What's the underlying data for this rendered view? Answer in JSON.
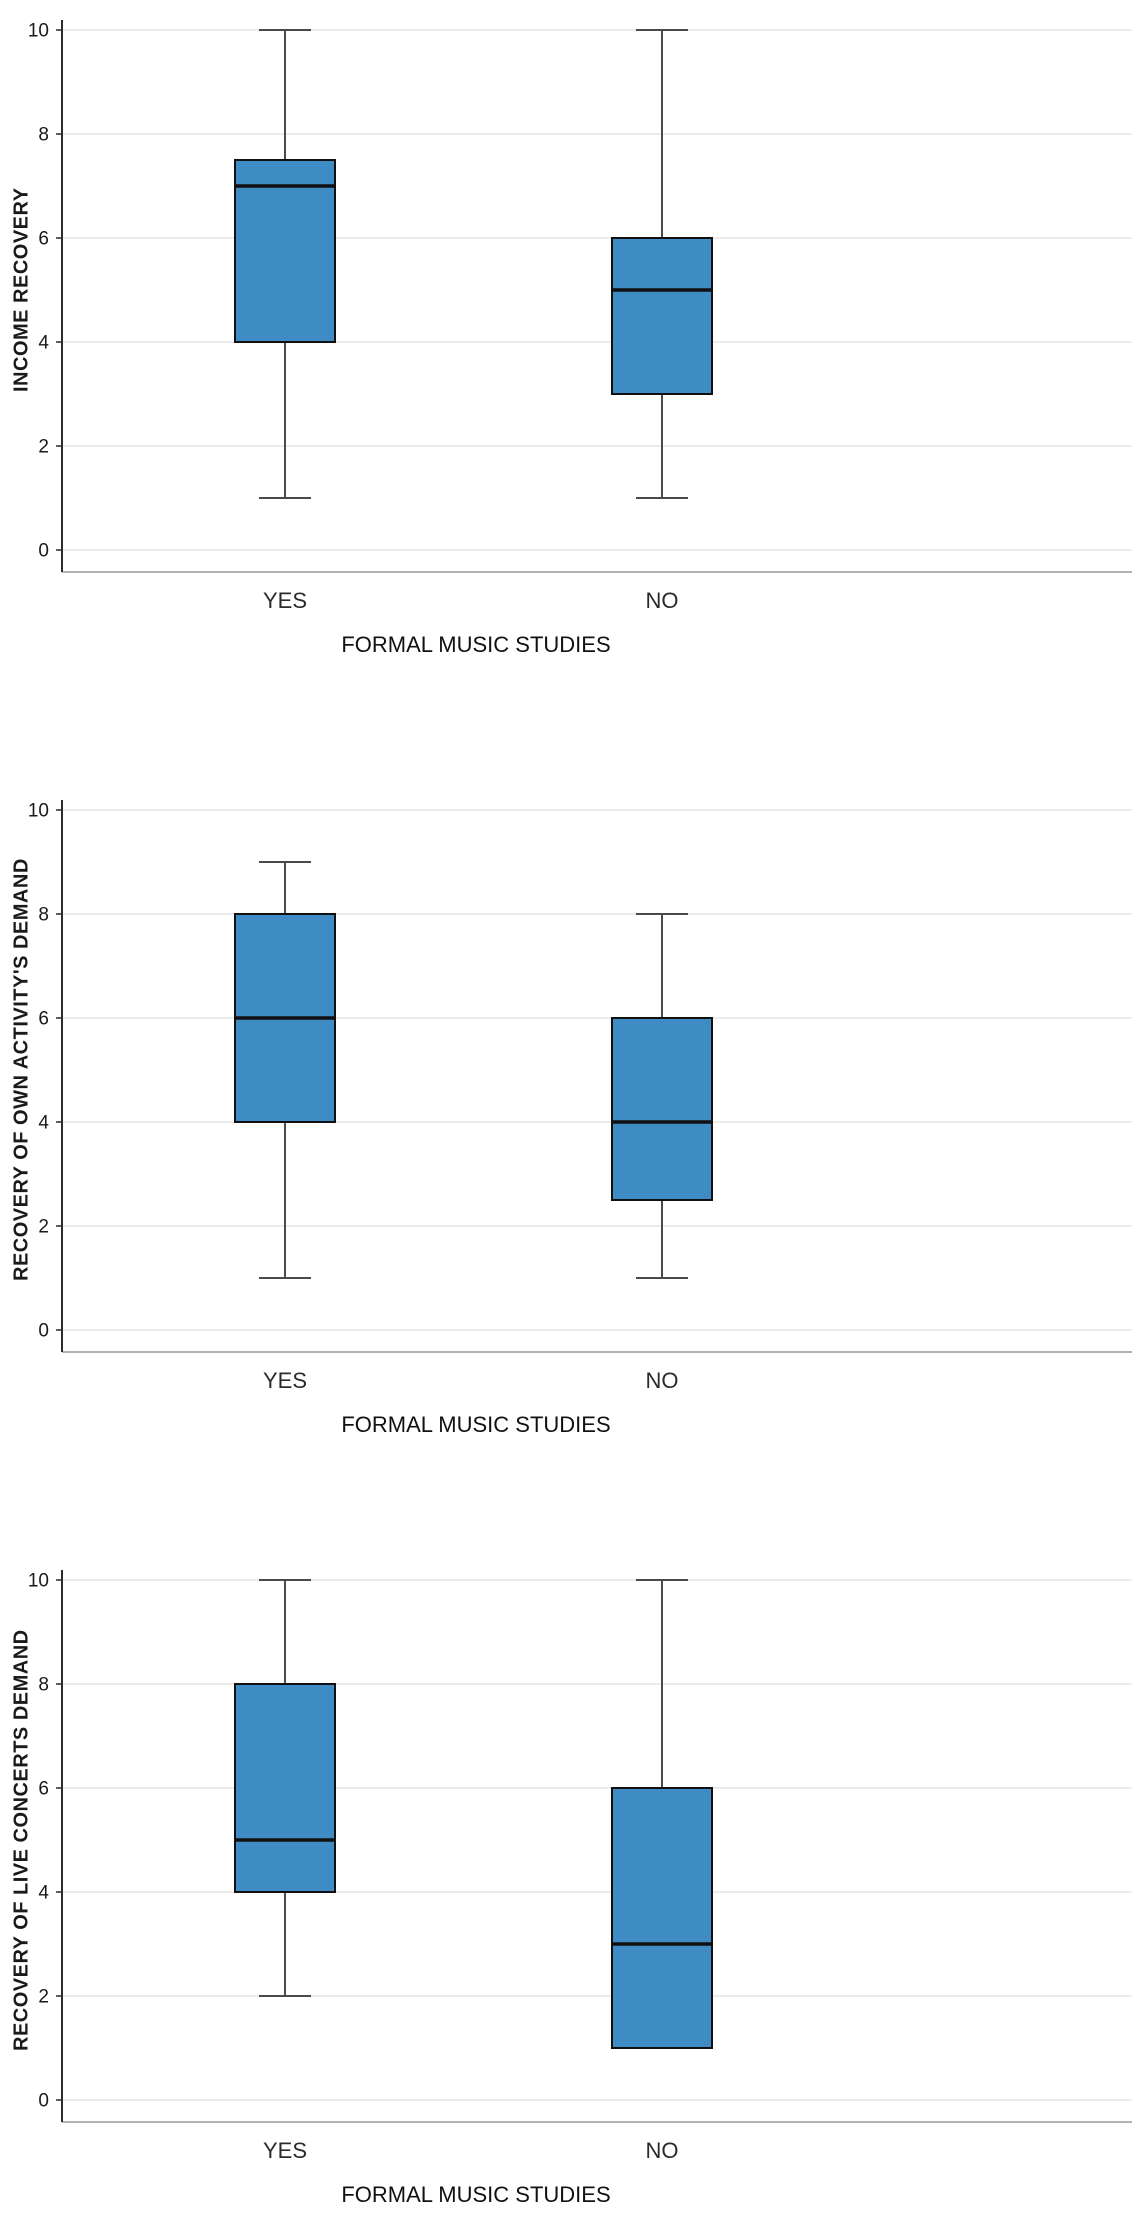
{
  "page": {
    "background": "#ffffff"
  },
  "colors": {
    "box_fill": "#3f8cc5",
    "box_border": "#101010",
    "median": "#101010",
    "whisker": "#4a4a4a",
    "gridline": "#d8d8d8",
    "frame": "#9a9a9a",
    "axis": "#2b2b2b",
    "text": "#1a1a1a"
  },
  "chart_data": [
    {
      "type": "boxplot",
      "ylabel": "INCOME RECOVERY",
      "xlabel": "FORMAL MUSIC STUDIES",
      "categories": [
        "YES",
        "NO"
      ],
      "yticks": [
        0,
        2,
        4,
        6,
        8,
        10
      ],
      "ylim": [
        0,
        10
      ],
      "grid": "horizontal",
      "series": [
        {
          "category": "YES",
          "whisker_low": 1,
          "q1": 4,
          "median": 7,
          "q3": 7.5,
          "whisker_high": 10
        },
        {
          "category": "NO",
          "whisker_low": 1,
          "q1": 3,
          "median": 5,
          "q3": 6,
          "whisker_high": 10
        }
      ]
    },
    {
      "type": "boxplot",
      "ylabel": "RECOVERY OF OWN ACTIVITY'S DEMAND",
      "xlabel": "FORMAL MUSIC STUDIES",
      "categories": [
        "YES",
        "NO"
      ],
      "yticks": [
        0,
        2,
        4,
        6,
        8,
        10
      ],
      "ylim": [
        0,
        10
      ],
      "grid": "horizontal",
      "series": [
        {
          "category": "YES",
          "whisker_low": 1,
          "q1": 4,
          "median": 6,
          "q3": 8,
          "whisker_high": 9
        },
        {
          "category": "NO",
          "whisker_low": 1,
          "q1": 2.5,
          "median": 4,
          "q3": 6,
          "whisker_high": 8
        }
      ]
    },
    {
      "type": "boxplot",
      "ylabel": "RECOVERY OF LIVE CONCERTS DEMAND",
      "xlabel": "FORMAL MUSIC STUDIES",
      "categories": [
        "YES",
        "NO"
      ],
      "yticks": [
        0,
        2,
        4,
        6,
        8,
        10
      ],
      "ylim": [
        0,
        10
      ],
      "grid": "horizontal",
      "series": [
        {
          "category": "YES",
          "whisker_low": 2,
          "q1": 4,
          "median": 5,
          "q3": 8,
          "whisker_high": 10
        },
        {
          "category": "NO",
          "whisker_low": 1,
          "q1": 1,
          "median": 3,
          "q3": 6,
          "whisker_high": 10
        }
      ]
    }
  ]
}
